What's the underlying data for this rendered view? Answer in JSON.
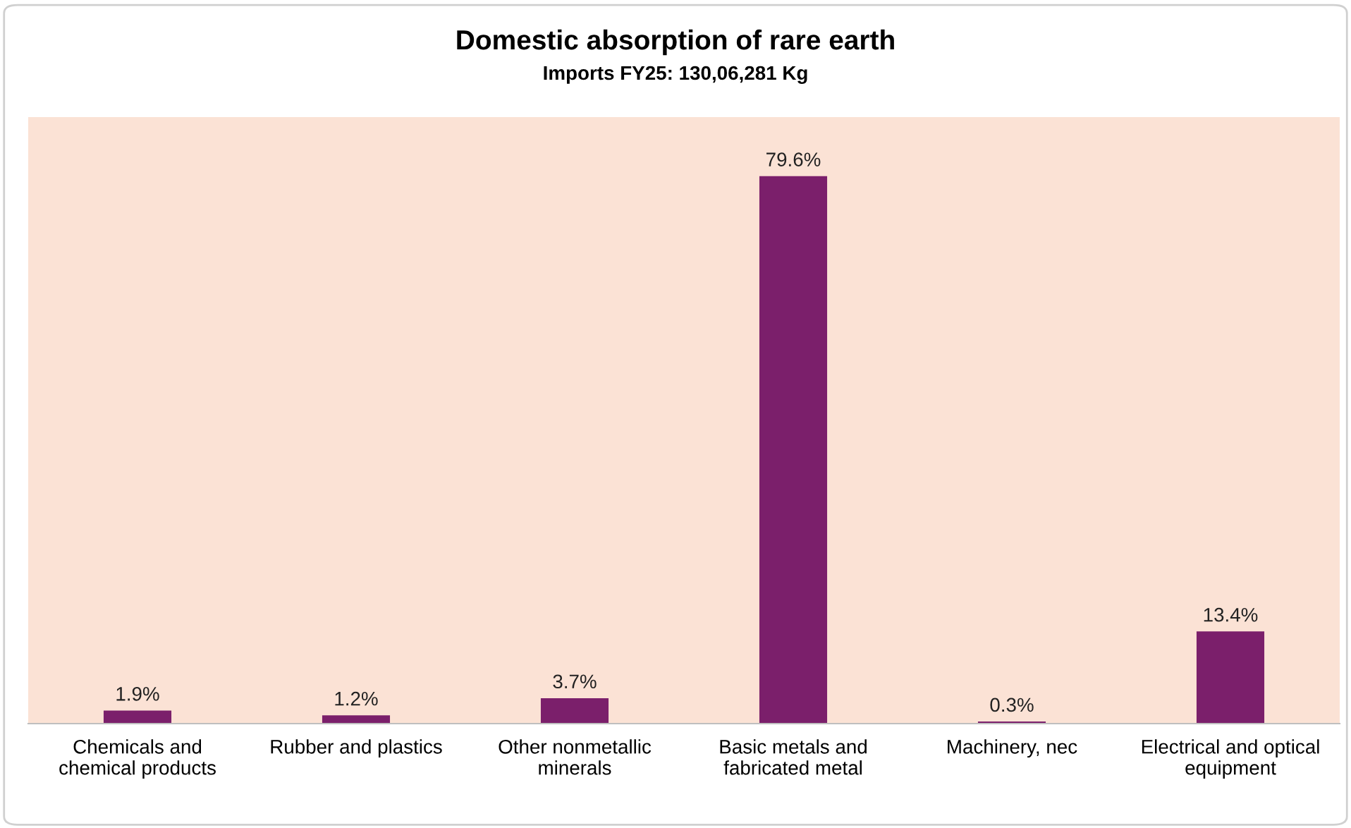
{
  "chart_data": {
    "type": "bar",
    "title": "Domestic absorption of rare earth",
    "subtitle": "Imports FY25: 130,06,281 Kg",
    "categories": [
      "Chemicals and\nchemical products",
      "Rubber and plastics",
      "Other nonmetallic\nminerals",
      "Basic metals and\nfabricated metal",
      "Machinery, nec",
      "Electrical and optical\nequipment"
    ],
    "values": [
      1.9,
      1.2,
      3.7,
      79.6,
      0.3,
      13.4
    ],
    "value_labels": [
      "1.9%",
      "1.2%",
      "3.7%",
      "79.6%",
      "0.3%",
      "13.4%"
    ],
    "color": "#7b1f6b"
  }
}
